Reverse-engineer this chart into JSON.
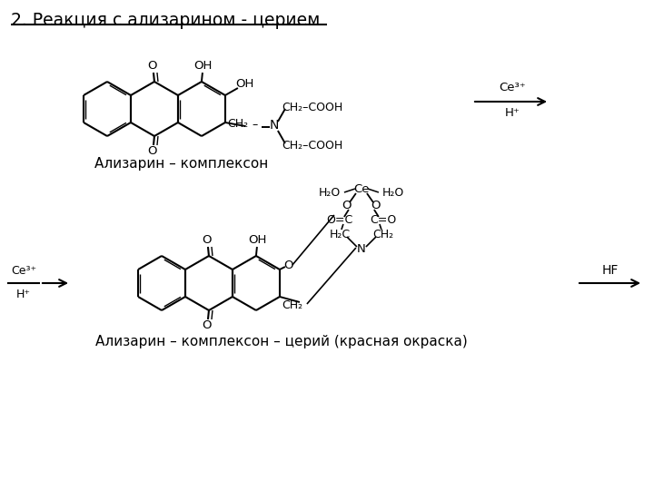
{
  "title": "2. Реакция с ализарином - церием",
  "label1": "Ализарин – комплексон",
  "label2": "Ализарин – комплексон – церий (красная окраска)",
  "bg_color": "#ffffff",
  "text_color": "#000000"
}
